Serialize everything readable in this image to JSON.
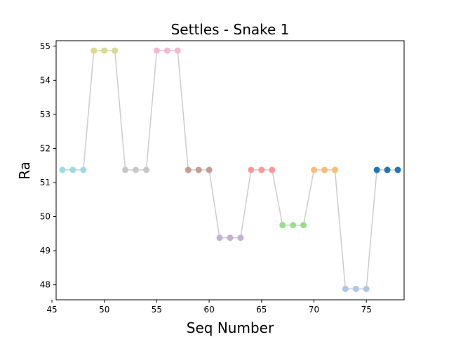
{
  "chart_data": {
    "type": "scatter",
    "title": "Settles - Snake 1",
    "xlabel": "Seq Number",
    "ylabel": "Ra",
    "xlim": [
      45.4,
      78.6
    ],
    "ylim": [
      47.56,
      55.16
    ],
    "xticks": [
      45,
      50,
      55,
      60,
      65,
      70,
      75
    ],
    "yticks": [
      48,
      49,
      50,
      51,
      52,
      53,
      54,
      55
    ],
    "grid": false,
    "line_color": "#cccccc",
    "groups": [
      {
        "x": [
          46,
          47,
          48
        ],
        "y": 51.37,
        "color": "#9edae5"
      },
      {
        "x": [
          49,
          50,
          51
        ],
        "y": 54.87,
        "color": "#dbdb8d"
      },
      {
        "x": [
          52,
          53,
          54
        ],
        "y": 51.37,
        "color": "#c7c7c7"
      },
      {
        "x": [
          55,
          56,
          57
        ],
        "y": 54.87,
        "color": "#f7b6d2"
      },
      {
        "x": [
          58,
          59,
          60
        ],
        "y": 51.37,
        "color": "#c49c94"
      },
      {
        "x": [
          61,
          62,
          63
        ],
        "y": 49.38,
        "color": "#c5b0d5"
      },
      {
        "x": [
          64,
          65,
          66
        ],
        "y": 51.37,
        "color": "#ff9896"
      },
      {
        "x": [
          67,
          68,
          69
        ],
        "y": 49.75,
        "color": "#98df8a"
      },
      {
        "x": [
          70,
          71,
          72
        ],
        "y": 51.37,
        "color": "#ffbb78"
      },
      {
        "x": [
          73,
          74,
          75
        ],
        "y": 47.88,
        "color": "#aec7e8"
      },
      {
        "x": [
          76,
          77,
          78
        ],
        "y": 51.37,
        "color": "#1f77b4"
      }
    ]
  }
}
